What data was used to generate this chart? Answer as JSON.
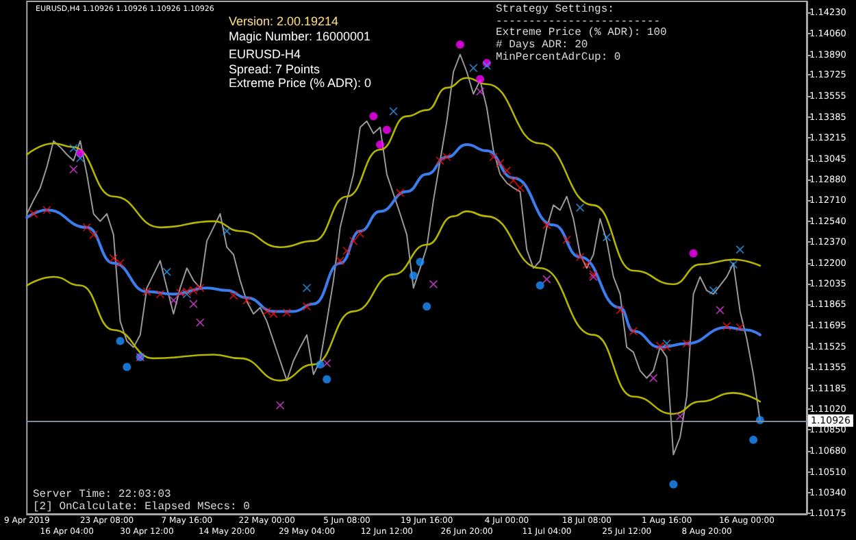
{
  "chart_data": {
    "type": "line",
    "marker": "none",
    "categories": [
      "9 Apr 2019",
      null,
      null,
      null,
      null,
      null,
      "16 Apr 04:00",
      null,
      null,
      null,
      null,
      null,
      "23 Apr 08:00",
      null,
      null,
      null,
      null,
      null,
      "30 Apr 12:00",
      null,
      null,
      null,
      null,
      null,
      "7 May 16:00",
      null,
      null,
      null,
      null,
      null,
      "14 May 20:00",
      null,
      null,
      null,
      null,
      null,
      "22 May 00:00",
      null,
      null,
      null,
      null,
      null,
      "29 May 04:00",
      null,
      null,
      null,
      null,
      null,
      "5 Jun 08:00",
      null,
      null,
      null,
      null,
      null,
      "12 Jun 12:00",
      null,
      null,
      null,
      null,
      null,
      "19 Jun 16:00",
      null,
      null,
      null,
      null,
      null,
      "26 Jun 20:00",
      null,
      null,
      null,
      null,
      null,
      "4 Jul 00:00",
      null,
      null,
      null,
      null,
      null,
      "11 Jul 04:00",
      null,
      null,
      null,
      null,
      null,
      "18 Jul 08:00",
      null,
      null,
      null,
      null,
      null,
      "25 Jul 12:00",
      null,
      null,
      null,
      null,
      null,
      "1 Aug 16:00",
      null,
      null,
      null,
      null,
      null,
      "8 Aug 20:00",
      null,
      null,
      null,
      null,
      null,
      "16 Aug 00:00",
      null,
      null,
      null,
      null,
      null,
      null,
      null,
      null,
      null
    ],
    "series": [
      {
        "color": "#9a9a9a",
        "values": [
          1.126,
          1.1271,
          1.1281,
          1.1298,
          1.1319,
          1.1314,
          1.1308,
          1.1303,
          1.1319,
          1.1292,
          1.126,
          1.1254,
          1.126,
          1.1243,
          1.1173,
          1.1157,
          1.1152,
          1.1162,
          1.12,
          1.1211,
          1.1222,
          1.12,
          1.1179,
          1.12,
          1.1216,
          1.1206,
          1.12,
          1.1238,
          1.1249,
          1.126,
          1.1233,
          1.1227,
          1.1206,
          1.1189,
          1.1179,
          1.1184,
          1.1173,
          1.1157,
          1.1141,
          1.1125,
          1.1141,
          1.1152,
          1.1162,
          1.113,
          1.1141,
          1.1173,
          1.1206,
          1.1249,
          1.1271,
          1.1292,
          1.133,
          1.1335,
          1.1325,
          1.133,
          1.1292,
          1.1276,
          1.126,
          1.1243,
          1.12,
          1.1216,
          1.1233,
          1.1271,
          1.1303,
          1.1335,
          1.1375,
          1.1389,
          1.1375,
          1.1357,
          1.1368,
          1.1346,
          1.1311,
          1.1292,
          1.1285,
          1.1281,
          1.1278,
          1.1231,
          1.1216,
          1.1222,
          1.1249,
          1.1267,
          1.1263,
          1.1274,
          1.1256,
          1.1227,
          1.1216,
          1.1227,
          1.1256,
          1.1238,
          1.1209,
          1.1195,
          1.1152,
          1.1148,
          1.1133,
          1.1127,
          1.1133,
          1.1152,
          1.1144,
          1.1065,
          1.1079,
          1.1112,
          1.1195,
          1.1209,
          1.1198,
          1.1195,
          1.1202,
          1.1209,
          1.122,
          1.1181,
          1.1159,
          1.113,
          1.10926,
          null,
          null,
          null,
          null,
          null,
          null,
          null
        ]
      },
      {
        "color": "#b5b500",
        "values": [
          1.1308,
          null,
          null,
          null,
          1.1317,
          null,
          null,
          1.1314,
          null,
          null,
          null,
          null,
          null,
          1.1274,
          null,
          null,
          null,
          null,
          null,
          null,
          1.1249,
          null,
          null,
          null,
          null,
          null,
          null,
          null,
          1.1254,
          null,
          null,
          null,
          1.1246,
          null,
          null,
          null,
          null,
          null,
          1.1233,
          null,
          null,
          null,
          null,
          1.1238,
          null,
          null,
          null,
          null,
          1.1274,
          null,
          null,
          null,
          null,
          1.1312,
          null,
          null,
          null,
          1.1339,
          null,
          null,
          1.1344,
          null,
          null,
          1.1362,
          null,
          null,
          1.137,
          null,
          null,
          1.1365,
          null,
          null,
          null,
          null,
          null,
          null,
          null,
          1.1317,
          null,
          null,
          null,
          null,
          null,
          null,
          null,
          1.1267,
          null,
          null,
          null,
          null,
          null,
          1.1214,
          null,
          null,
          null,
          null,
          null,
          1.1203,
          null,
          null,
          null,
          1.1219,
          null,
          null,
          null,
          null,
          1.1223,
          null,
          null,
          null,
          1.1218,
          null,
          null,
          null,
          null,
          null,
          null,
          null
        ]
      },
      {
        "color": "#b5b500",
        "values": [
          1.1202,
          null,
          null,
          null,
          1.1209,
          null,
          null,
          null,
          1.1202,
          null,
          null,
          null,
          null,
          1.1166,
          null,
          null,
          null,
          null,
          null,
          1.1143,
          null,
          null,
          null,
          null,
          null,
          null,
          null,
          null,
          1.1146,
          null,
          null,
          null,
          1.1143,
          null,
          null,
          null,
          null,
          null,
          1.1125,
          null,
          null,
          null,
          null,
          1.1138,
          null,
          null,
          null,
          null,
          null,
          1.1181,
          null,
          null,
          null,
          null,
          null,
          1.1211,
          null,
          null,
          null,
          null,
          1.1235,
          null,
          null,
          null,
          1.1258,
          null,
          1.1262,
          null,
          null,
          1.1258,
          null,
          null,
          null,
          null,
          null,
          null,
          null,
          1.1216,
          null,
          null,
          null,
          null,
          null,
          null,
          null,
          1.1162,
          null,
          null,
          null,
          null,
          null,
          1.1112,
          null,
          null,
          null,
          null,
          null,
          1.1098,
          null,
          null,
          null,
          1.1108,
          null,
          null,
          null,
          null,
          1.1115,
          null,
          null,
          null,
          1.1108,
          null,
          null,
          null,
          null,
          null,
          null,
          null
        ]
      },
      {
        "color": "#3b7ded",
        "values": [
          1.1257,
          null,
          null,
          1.1263,
          null,
          null,
          null,
          null,
          null,
          1.1249,
          null,
          null,
          null,
          1.122,
          null,
          null,
          null,
          null,
          1.1197,
          null,
          null,
          null,
          1.1195,
          null,
          null,
          null,
          null,
          1.12,
          null,
          null,
          1.1198,
          null,
          null,
          1.1192,
          null,
          null,
          null,
          1.1181,
          null,
          null,
          1.1181,
          null,
          null,
          1.1187,
          null,
          null,
          null,
          1.122,
          null,
          null,
          1.1246,
          null,
          null,
          1.1262,
          null,
          null,
          null,
          1.1278,
          null,
          null,
          1.1292,
          null,
          null,
          1.1306,
          null,
          null,
          1.1316,
          null,
          null,
          1.1311,
          null,
          null,
          null,
          1.1289,
          null,
          null,
          null,
          null,
          null,
          1.1251,
          null,
          null,
          null,
          1.1225,
          null,
          null,
          null,
          null,
          null,
          1.1184,
          null,
          1.1165,
          null,
          null,
          null,
          1.1152,
          null,
          null,
          null,
          1.1155,
          null,
          null,
          null,
          null,
          null,
          1.1168,
          null,
          null,
          1.1166,
          null,
          1.1162,
          null,
          null,
          null,
          null,
          null,
          null,
          null
        ]
      },
      {
        "type": "scatter",
        "marker": "cross",
        "color": "#ff1010",
        "values": [
          null,
          1.126,
          null,
          1.1263,
          null,
          null,
          null,
          null,
          null,
          1.1249,
          1.1243,
          null,
          null,
          1.1224,
          1.122,
          null,
          null,
          null,
          1.1197,
          null,
          1.1195,
          null,
          null,
          1.1196,
          1.1197,
          1.1198,
          1.12,
          null,
          null,
          null,
          null,
          1.1194,
          null,
          1.119,
          null,
          null,
          1.1181,
          1.1179,
          null,
          1.118,
          null,
          null,
          1.1185,
          null,
          null,
          null,
          null,
          1.1222,
          1.123,
          1.1238,
          1.1244,
          null,
          null,
          null,
          null,
          null,
          1.1277,
          null,
          null,
          null,
          null,
          null,
          1.1303,
          1.1306,
          null,
          null,
          null,
          null,
          null,
          null,
          1.1306,
          1.1301,
          1.1295,
          1.1287,
          1.1281,
          null,
          null,
          null,
          1.1251,
          null,
          null,
          1.1239,
          null,
          1.1225,
          1.1219,
          1.1211,
          null,
          null,
          null,
          1.1182,
          null,
          1.1165,
          null,
          null,
          null,
          1.1153,
          1.1152,
          null,
          null,
          1.1155,
          null,
          null,
          null,
          null,
          null,
          1.1169,
          null,
          1.1168,
          null,
          null,
          null,
          null,
          null,
          null,
          null,
          null,
          null,
          null
        ]
      },
      {
        "type": "scatter",
        "marker": "circle",
        "color": "#1e90ff",
        "values": [
          null,
          null,
          null,
          null,
          null,
          null,
          null,
          null,
          null,
          null,
          null,
          null,
          null,
          null,
          1.1157,
          1.1136,
          null,
          1.1144,
          null,
          null,
          null,
          null,
          null,
          null,
          null,
          null,
          null,
          null,
          null,
          null,
          null,
          null,
          null,
          null,
          null,
          null,
          null,
          null,
          null,
          null,
          null,
          null,
          null,
          null,
          1.1138,
          1.1126,
          null,
          null,
          null,
          null,
          null,
          null,
          null,
          null,
          null,
          null,
          null,
          null,
          1.121,
          1.1221,
          1.1185,
          null,
          null,
          null,
          null,
          null,
          null,
          null,
          null,
          null,
          null,
          null,
          null,
          null,
          null,
          null,
          null,
          1.1202,
          null,
          null,
          null,
          null,
          null,
          null,
          null,
          null,
          null,
          null,
          null,
          null,
          null,
          null,
          null,
          null,
          null,
          null,
          null,
          1.1041,
          null,
          null,
          null,
          null,
          null,
          null,
          null,
          null,
          null,
          null,
          null,
          1.1077,
          1.1093,
          null,
          null,
          null,
          null,
          null,
          null,
          null
        ]
      },
      {
        "type": "scatter",
        "marker": "circle",
        "color": "#ff00ff",
        "values": [
          null,
          null,
          null,
          null,
          null,
          null,
          null,
          null,
          1.1309,
          null,
          null,
          null,
          null,
          null,
          null,
          null,
          null,
          null,
          null,
          null,
          null,
          null,
          null,
          null,
          null,
          null,
          null,
          null,
          null,
          null,
          null,
          null,
          null,
          null,
          null,
          null,
          null,
          null,
          null,
          null,
          null,
          null,
          null,
          null,
          null,
          null,
          null,
          null,
          null,
          null,
          null,
          null,
          1.1339,
          1.1316,
          1.1328,
          null,
          null,
          null,
          null,
          null,
          null,
          null,
          null,
          null,
          null,
          1.1397,
          null,
          null,
          1.1369,
          1.1382,
          null,
          null,
          null,
          null,
          null,
          null,
          null,
          null,
          null,
          null,
          null,
          null,
          null,
          null,
          null,
          null,
          null,
          null,
          null,
          null,
          null,
          null,
          null,
          null,
          null,
          null,
          null,
          null,
          null,
          null,
          1.1228,
          null,
          null,
          null,
          null,
          null,
          null,
          null,
          null,
          null,
          null,
          null,
          null,
          null,
          null,
          null,
          null,
          null
        ]
      },
      {
        "type": "scatter",
        "marker": "cross",
        "color": "#2a9df4",
        "values": [
          null,
          null,
          null,
          null,
          null,
          null,
          null,
          1.1313,
          1.1305,
          null,
          null,
          null,
          null,
          null,
          null,
          null,
          null,
          null,
          null,
          null,
          null,
          1.1213,
          null,
          null,
          1.1195,
          null,
          null,
          null,
          null,
          null,
          1.1246,
          null,
          null,
          null,
          null,
          null,
          null,
          null,
          null,
          null,
          null,
          null,
          1.12,
          null,
          null,
          null,
          null,
          null,
          null,
          null,
          null,
          null,
          null,
          null,
          null,
          1.1343,
          null,
          null,
          null,
          null,
          null,
          null,
          null,
          null,
          null,
          null,
          null,
          1.1378,
          null,
          1.138,
          null,
          null,
          null,
          null,
          null,
          null,
          null,
          null,
          null,
          null,
          null,
          null,
          null,
          1.1265,
          null,
          null,
          null,
          1.1241,
          null,
          null,
          null,
          null,
          null,
          null,
          null,
          null,
          1.1155,
          null,
          null,
          null,
          null,
          null,
          null,
          1.1198,
          null,
          null,
          1.1219,
          1.1231,
          null,
          null,
          null,
          null,
          null,
          null,
          null,
          null,
          null,
          null
        ]
      },
      {
        "type": "scatter",
        "marker": "cross",
        "color": "#e040e0",
        "values": [
          null,
          null,
          null,
          null,
          null,
          null,
          null,
          1.1296,
          null,
          null,
          null,
          null,
          null,
          null,
          null,
          null,
          null,
          1.1144,
          null,
          null,
          null,
          null,
          1.119,
          null,
          null,
          1.1187,
          1.1172,
          null,
          null,
          null,
          null,
          null,
          null,
          null,
          null,
          null,
          null,
          null,
          1.1105,
          null,
          null,
          null,
          null,
          null,
          null,
          1.1139,
          null,
          null,
          null,
          null,
          null,
          null,
          null,
          null,
          null,
          null,
          null,
          null,
          null,
          null,
          null,
          1.1203,
          null,
          null,
          null,
          null,
          null,
          null,
          1.1359,
          null,
          null,
          null,
          null,
          null,
          null,
          null,
          null,
          null,
          1.1207,
          null,
          null,
          null,
          null,
          null,
          null,
          1.1209,
          null,
          null,
          null,
          null,
          null,
          null,
          null,
          null,
          1.1127,
          null,
          null,
          null,
          1.1096,
          null,
          null,
          null,
          null,
          null,
          1.1182,
          null,
          null,
          null,
          null,
          null,
          null,
          null,
          null,
          null,
          null,
          null,
          null,
          null
        ]
      }
    ],
    "ylim": [
      1.1017,
      1.1432
    ],
    "yticks": [
      {
        "value": 1.1423,
        "label": "1.14230"
      },
      {
        "value": 1.1406,
        "label": "1.14060"
      },
      {
        "value": 1.1389,
        "label": "1.13890"
      },
      {
        "value": 1.13725,
        "label": "1.13725"
      },
      {
        "value": 1.13555,
        "label": "1.13555"
      },
      {
        "value": 1.13385,
        "label": "1.13385"
      },
      {
        "value": 1.13215,
        "label": "1.13215"
      },
      {
        "value": 1.13045,
        "label": "1.13045"
      },
      {
        "value": 1.1288,
        "label": "1.12880"
      },
      {
        "value": 1.1271,
        "label": "1.12710"
      },
      {
        "value": 1.1254,
        "label": "1.12540"
      },
      {
        "value": 1.1237,
        "label": "1.12370"
      },
      {
        "value": 1.122,
        "label": "1.12200"
      },
      {
        "value": 1.12035,
        "label": "1.12035"
      },
      {
        "value": 1.11865,
        "label": "1.11865"
      },
      {
        "value": 1.11695,
        "label": "1.11695"
      },
      {
        "value": 1.11525,
        "label": "1.11525"
      },
      {
        "value": 1.11355,
        "label": "1.11355"
      },
      {
        "value": 1.11185,
        "label": "1.11185"
      },
      {
        "value": 1.1102,
        "label": "1.11020"
      },
      {
        "value": 1.1085,
        "label": "1.10850"
      },
      {
        "value": 1.1068,
        "label": "1.10680"
      },
      {
        "value": 1.1051,
        "label": "1.10510"
      },
      {
        "value": 1.1034,
        "label": "1.10340"
      },
      {
        "value": 1.10175,
        "label": "1.10175"
      }
    ],
    "ref_lines": [
      {
        "axis": "y",
        "value": 1.10926,
        "label": "1.10926",
        "color": "#7f8c99"
      }
    ],
    "annotations": [
      "EURUSD,H4 1.10926 1.10926 1.10926 1.10926",
      "Version: 2.00.19214",
      "Magic Number: 16000001",
      "EURUSD-H4",
      "Spread: 7 Points",
      "Extreme Price (% ADR): 0",
      "Strategy Settings:",
      "-------------------------",
      "Extreme Price (% ADR): 100",
      "# Days ADR: 20",
      "MinPercentAdrCup: 0",
      "Server Time: 22:03:03",
      "[2] OnCalculate: Elapsed MSecs: 0"
    ]
  }
}
